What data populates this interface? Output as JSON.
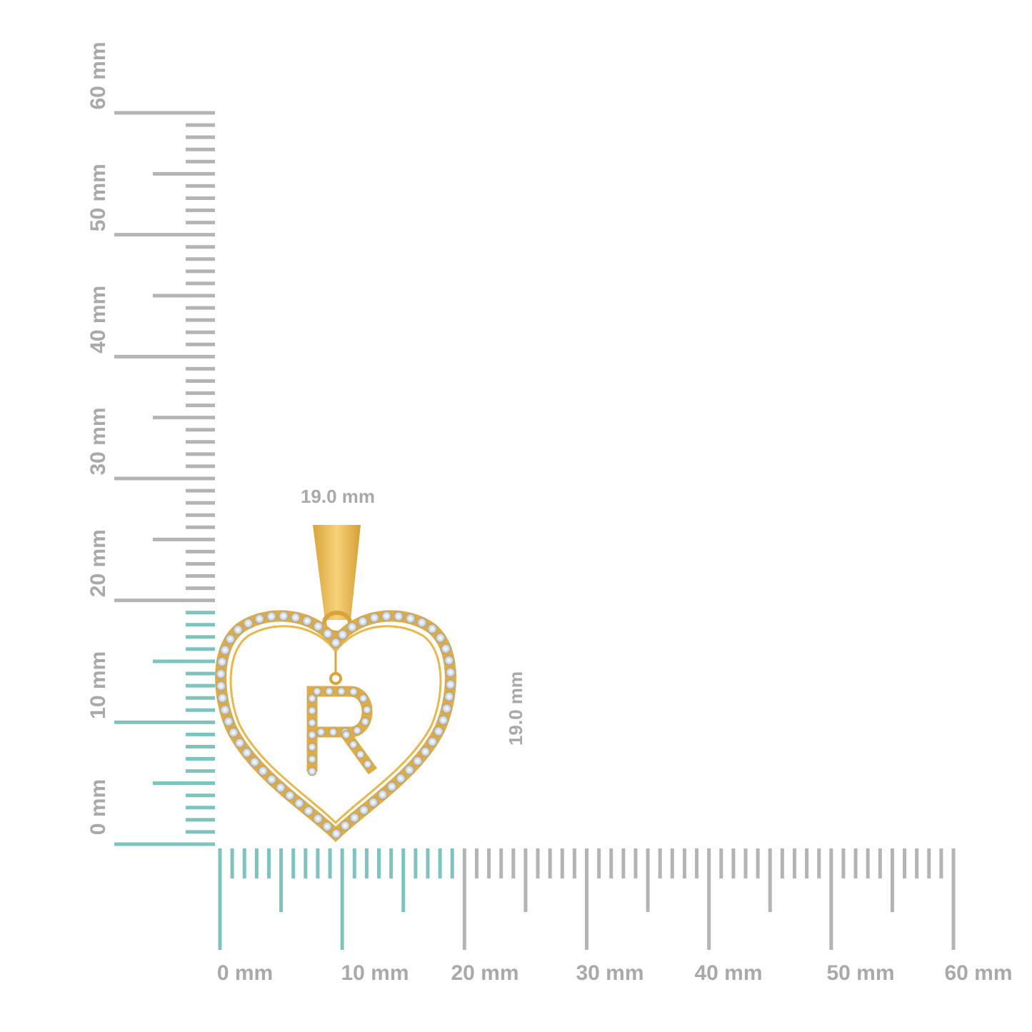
{
  "rulers": {
    "horizontal": {
      "labels": [
        "0 mm",
        "10 mm",
        "20 mm",
        "30 mm",
        "40 mm",
        "50 mm",
        "60 mm"
      ],
      "range_mm": [
        0,
        60
      ],
      "highlight_mm": [
        0,
        19
      ]
    },
    "vertical": {
      "labels": [
        "0 mm",
        "10 mm",
        "20 mm",
        "30 mm",
        "40 mm",
        "50 mm",
        "60 mm"
      ],
      "range_mm": [
        0,
        60
      ],
      "highlight_mm": [
        0,
        19
      ]
    }
  },
  "dimensions": {
    "width_label": "19.0 mm",
    "height_label": "19.0 mm"
  },
  "pendant": {
    "initial_letter": "R",
    "shape": "heart",
    "metal_color": "#e8b84a",
    "stone_color": "#d6dde6"
  },
  "colors": {
    "highlight": "#7cc4bd",
    "tick": "#b4b4b4",
    "label": "#a9a9a9"
  }
}
